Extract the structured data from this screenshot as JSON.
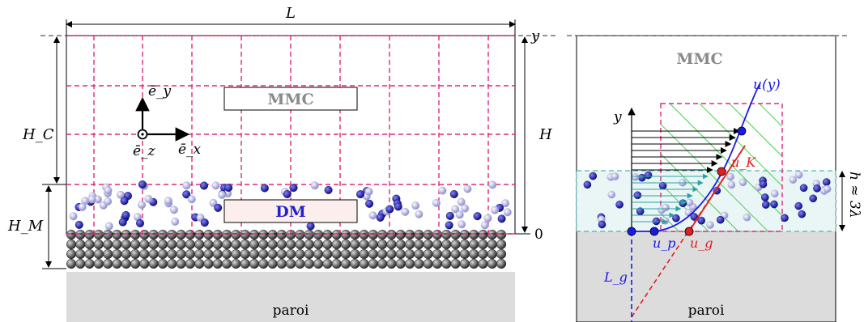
{
  "left_panel": {
    "length_label": "L",
    "y_axis_label": "y",
    "height_label": "H",
    "hc_label": "H_C",
    "hm_label": "H_M",
    "zero_label": "0",
    "ey_label": "ē_y",
    "ex_label": "ē_x",
    "ez_label": "ē_z",
    "mmc_box_label": "MMC",
    "dm_box_label": "DM",
    "wall_label": "paroi"
  },
  "right_panel": {
    "mmc_label": "MMC",
    "y_axis_label": "y",
    "uy_label": "u(y)",
    "uk_label": "u_K",
    "up_label": "u_p",
    "ug_label": "u_g",
    "lg_label": "L_g",
    "h_label": "h ≈ 3λ",
    "wall_label": "paroi"
  },
  "colors": {
    "grid_dashed": "#e0287a",
    "molecule_dark": "#1c1c9a",
    "molecule_light": "#9a9ad6",
    "wall_fill": "#dcdcdc",
    "wall_atom": "#5a5a5a",
    "velocity_profile": "#1a1ae6",
    "slip_line": "#e02020",
    "hatch": "#22c022",
    "dm_band": "#2aa3a3"
  }
}
